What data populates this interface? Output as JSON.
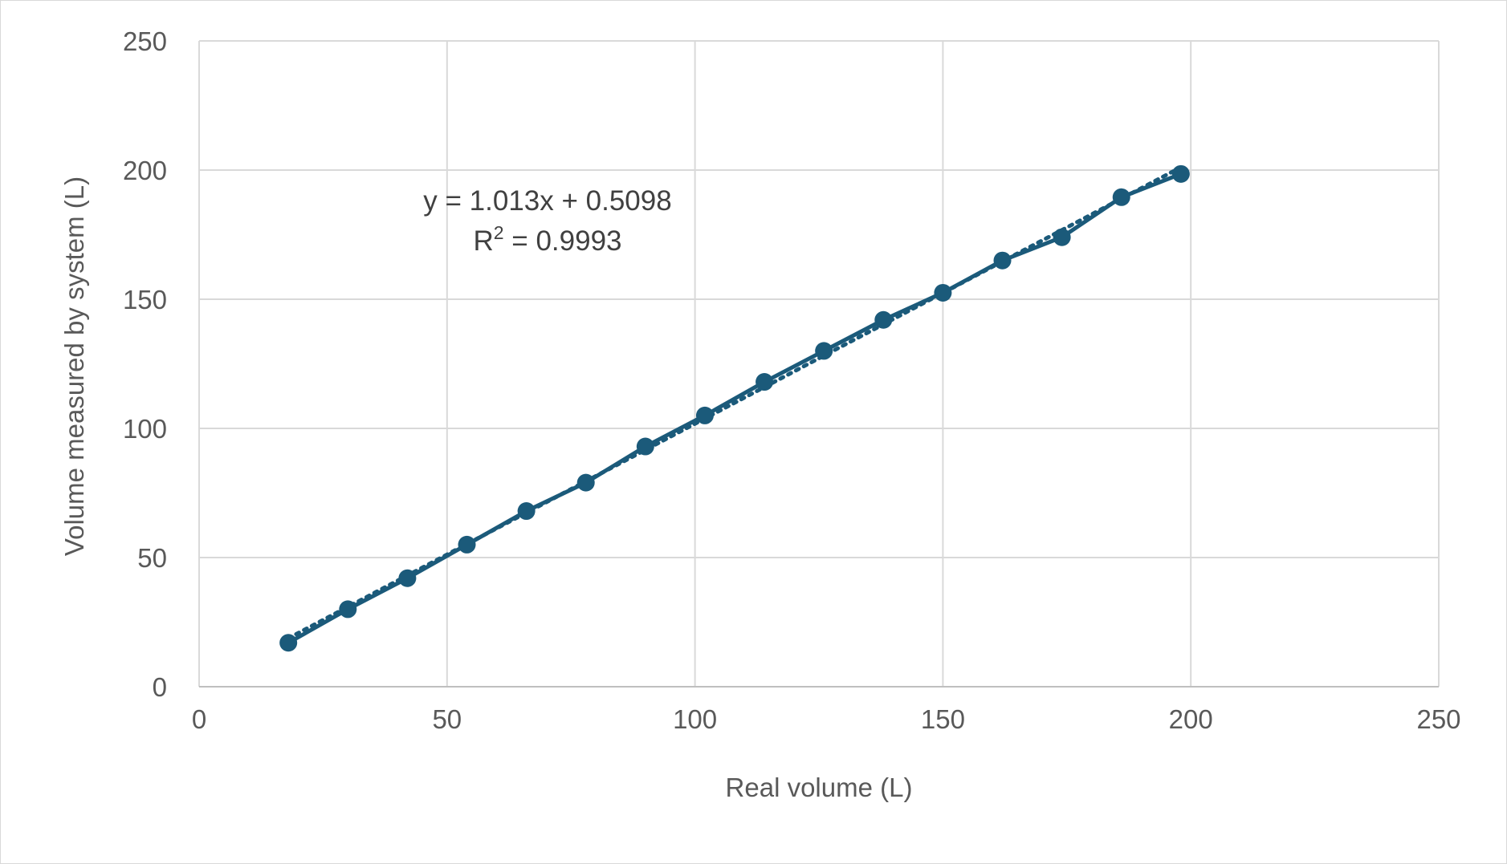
{
  "chart_data": {
    "type": "scatter",
    "title": "",
    "xlabel": "Real volume (L)",
    "ylabel": "Volume measured by system (L)",
    "xlim": [
      0,
      250
    ],
    "ylim": [
      0,
      250
    ],
    "x_ticks": [
      "0",
      "50",
      "100",
      "150",
      "200",
      "250"
    ],
    "y_ticks": [
      "0",
      "50",
      "100",
      "150",
      "200",
      "250"
    ],
    "grid": true,
    "legend": "none",
    "series": [
      {
        "x": [
          18,
          30,
          42,
          54,
          66,
          78,
          90,
          102,
          114,
          126,
          138,
          150,
          162,
          174,
          186,
          198
        ],
        "y": [
          17,
          30,
          42,
          55,
          68,
          79,
          93,
          105,
          118,
          130,
          142,
          152.5,
          165,
          174,
          189.5,
          198.5
        ],
        "color": "#1b5a7a",
        "line": "solid",
        "marker": "circle"
      }
    ],
    "trendline": {
      "type": "linear",
      "slope": 1.013,
      "intercept": 0.5098,
      "style": "dotted",
      "color": "#1b5a7a",
      "label_equation": "y = 1.013x + 0.5098",
      "label_r2_base": "R",
      "label_r2_exp": "2",
      "label_r2_value": " = 0.9993"
    }
  }
}
